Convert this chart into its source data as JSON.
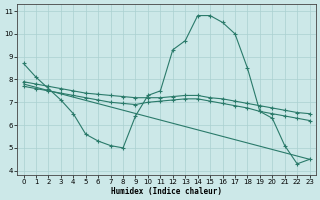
{
  "xlabel": "Humidex (Indice chaleur)",
  "bg_color": "#cce8e8",
  "line_color": "#2a7a6a",
  "grid_color": "#aad0d0",
  "xlim": [
    -0.5,
    23.5
  ],
  "ylim": [
    3.8,
    11.3
  ],
  "xticks": [
    0,
    1,
    2,
    3,
    4,
    5,
    6,
    7,
    8,
    9,
    10,
    11,
    12,
    13,
    14,
    15,
    16,
    17,
    18,
    19,
    20,
    21,
    22,
    23
  ],
  "yticks": [
    4,
    5,
    6,
    7,
    8,
    9,
    10,
    11
  ],
  "series": [
    {
      "x": [
        0,
        1,
        2,
        3,
        4,
        5,
        6,
        7,
        8,
        9,
        10,
        11,
        12,
        13,
        14,
        15,
        16,
        17,
        18,
        19,
        20,
        21,
        22,
        23
      ],
      "y": [
        8.7,
        8.1,
        7.6,
        7.1,
        6.5,
        5.6,
        5.3,
        5.1,
        5.0,
        6.4,
        7.3,
        7.5,
        9.3,
        9.7,
        10.8,
        10.8,
        10.5,
        10.0,
        8.5,
        6.6,
        6.3,
        5.1,
        4.3,
        4.5
      ],
      "has_markers": true
    },
    {
      "x": [
        0,
        1,
        2,
        3,
        4,
        5,
        6,
        7,
        8,
        9,
        10,
        11,
        12,
        13,
        14,
        15,
        16,
        17,
        18,
        19,
        20,
        21,
        22,
        23
      ],
      "y": [
        7.9,
        7.8,
        7.7,
        7.6,
        7.5,
        7.4,
        7.35,
        7.3,
        7.25,
        7.2,
        7.2,
        7.2,
        7.25,
        7.3,
        7.3,
        7.2,
        7.15,
        7.05,
        6.95,
        6.85,
        6.75,
        6.65,
        6.55,
        6.5
      ],
      "has_markers": true
    },
    {
      "x": [
        0,
        1,
        2,
        3,
        4,
        5,
        6,
        7,
        8,
        9,
        10,
        11,
        12,
        13,
        14,
        15,
        16,
        17,
        18,
        19,
        20,
        21,
        22,
        23
      ],
      "y": [
        7.7,
        7.6,
        7.5,
        7.4,
        7.3,
        7.2,
        7.1,
        7.0,
        6.95,
        6.9,
        7.0,
        7.05,
        7.1,
        7.15,
        7.15,
        7.05,
        6.95,
        6.85,
        6.75,
        6.6,
        6.5,
        6.4,
        6.3,
        6.2
      ],
      "has_markers": true
    },
    {
      "x": [
        0,
        23
      ],
      "y": [
        7.8,
        4.5
      ],
      "has_markers": false
    }
  ]
}
